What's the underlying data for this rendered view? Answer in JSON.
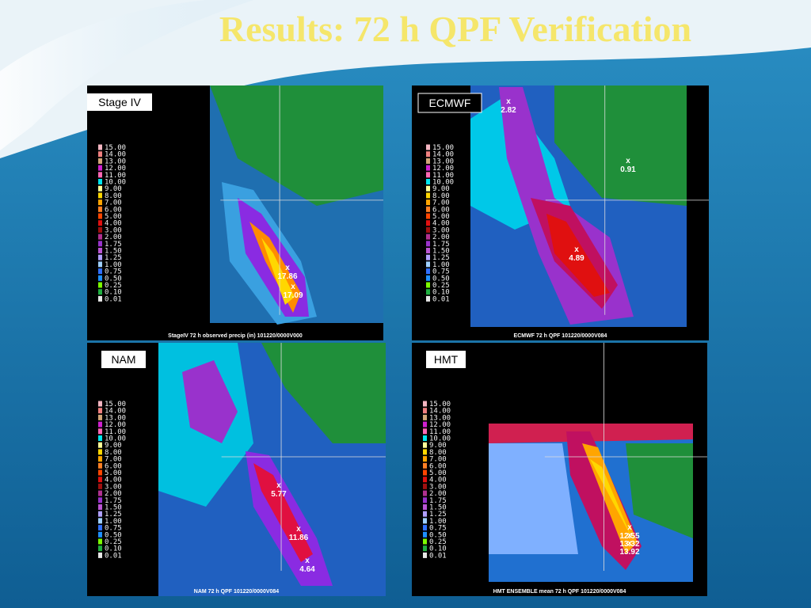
{
  "title": "Results: 72 h QPF Verification",
  "legend": [
    "15.00",
    "14.00",
    "13.00",
    "12.00",
    "11.00",
    "10.00",
    "9.00",
    "8.00",
    "7.00",
    "6.00",
    "5.00",
    "4.00",
    "3.00",
    "2.00",
    "1.75",
    "1.50",
    "1.25",
    "1.00",
    "0.75",
    "0.50",
    "0.25",
    "0.10",
    "0.01"
  ],
  "panels": [
    {
      "label": "Stage IV",
      "caption": "StageIV 72 h observed precip (in) 101220/0000V000",
      "annotations": [
        {
          "marker": "x",
          "value": "17.86"
        },
        {
          "marker": "x",
          "value": "17.09"
        }
      ]
    },
    {
      "label": "ECMWF",
      "caption": "ECMWF 72 h QPF 101220/0000V084",
      "annotations": [
        {
          "marker": "x",
          "value": "2.82"
        },
        {
          "marker": "x",
          "value": "0.91"
        },
        {
          "marker": "x",
          "value": "4.89"
        }
      ]
    },
    {
      "label": "NAM",
      "caption": "NAM 72 h QPF 101220/0000V084",
      "annotations": [
        {
          "marker": "x",
          "value": "5.77"
        },
        {
          "marker": "x",
          "value": "11.86"
        },
        {
          "marker": "x",
          "value": "4.64"
        }
      ]
    },
    {
      "label": "HMT",
      "caption": "HMT ENSEMBLE mean 72 h QPF 101220/0000V084",
      "annotations": [
        {
          "marker": "x",
          "value": "12.55"
        },
        {
          "marker": "x",
          "value": "13.32"
        },
        {
          "marker": "x",
          "value": "13.92"
        }
      ]
    }
  ]
}
